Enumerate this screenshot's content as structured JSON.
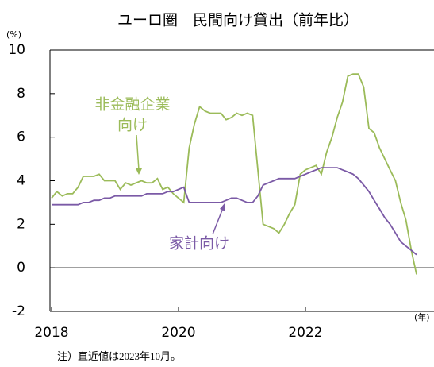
{
  "chart_data": {
    "type": "line",
    "title": "ユーロ圏　民間向け貸出（前年比）",
    "y_unit_label": "(%)",
    "x_unit_label": "(年)",
    "note": "注）直近値は2023年10月。",
    "annotations": [
      "非金融企業",
      "向け",
      "家計向け"
    ],
    "xlim": [
      2018,
      2024
    ],
    "xticks": [
      2018,
      2020,
      2022
    ],
    "ylim": [
      -2,
      10
    ],
    "yticks": [
      -2,
      0,
      2,
      4,
      6,
      8,
      10
    ],
    "x": [
      2018,
      2018.083,
      2018.167,
      2018.25,
      2018.333,
      2018.417,
      2018.5,
      2018.583,
      2018.667,
      2018.75,
      2018.833,
      2018.917,
      2019,
      2019.083,
      2019.167,
      2019.25,
      2019.333,
      2019.417,
      2019.5,
      2019.583,
      2019.667,
      2019.75,
      2019.833,
      2019.917,
      2020,
      2020.083,
      2020.167,
      2020.25,
      2020.333,
      2020.417,
      2020.5,
      2020.583,
      2020.667,
      2020.75,
      2020.833,
      2020.917,
      2021,
      2021.083,
      2021.167,
      2021.25,
      2021.333,
      2021.417,
      2021.5,
      2021.583,
      2021.667,
      2021.75,
      2021.833,
      2021.917,
      2022,
      2022.083,
      2022.167,
      2022.25,
      2022.333,
      2022.417,
      2022.5,
      2022.583,
      2022.667,
      2022.75,
      2022.833,
      2022.917,
      2023,
      2023.083,
      2023.167,
      2023.25,
      2023.333,
      2023.417,
      2023.5,
      2023.583,
      2023.667,
      2023.75
    ],
    "series": [
      {
        "name": "非金融企業向け",
        "color": "#9bbb59",
        "values": [
          3.2,
          3.5,
          3.3,
          3.4,
          3.4,
          3.7,
          4.2,
          4.2,
          4.2,
          4.3,
          4.0,
          4.0,
          4.0,
          3.6,
          3.9,
          3.8,
          3.9,
          4.0,
          3.9,
          3.9,
          4.1,
          3.6,
          3.7,
          3.4,
          3.2,
          3.0,
          5.5,
          6.6,
          7.4,
          7.2,
          7.1,
          7.1,
          7.1,
          6.8,
          6.9,
          7.1,
          7.0,
          7.1,
          7.0,
          4.5,
          2.0,
          1.9,
          1.8,
          1.6,
          2.0,
          2.5,
          2.9,
          4.3,
          4.5,
          4.6,
          4.7,
          4.3,
          5.3,
          6.0,
          6.9,
          7.6,
          8.8,
          8.9,
          8.9,
          8.3,
          6.4,
          6.2,
          5.5,
          5.0,
          4.5,
          4.0,
          3.0,
          2.2,
          0.8,
          -0.3
        ]
      },
      {
        "name": "家計向け",
        "color": "#7b5aa6",
        "values": [
          2.9,
          2.9,
          2.9,
          2.9,
          2.9,
          2.9,
          3.0,
          3.0,
          3.1,
          3.1,
          3.2,
          3.2,
          3.3,
          3.3,
          3.3,
          3.3,
          3.3,
          3.3,
          3.4,
          3.4,
          3.4,
          3.4,
          3.5,
          3.5,
          3.6,
          3.7,
          3.0,
          3.0,
          3.0,
          3.0,
          3.0,
          3.0,
          3.0,
          3.1,
          3.2,
          3.2,
          3.1,
          3.0,
          3.0,
          3.3,
          3.8,
          3.9,
          4.0,
          4.1,
          4.1,
          4.1,
          4.1,
          4.2,
          4.3,
          4.4,
          4.5,
          4.6,
          4.6,
          4.6,
          4.6,
          4.5,
          4.4,
          4.3,
          4.1,
          3.8,
          3.5,
          3.1,
          2.7,
          2.3,
          2.0,
          1.6,
          1.2,
          1.0,
          0.8,
          0.6
        ]
      }
    ]
  }
}
